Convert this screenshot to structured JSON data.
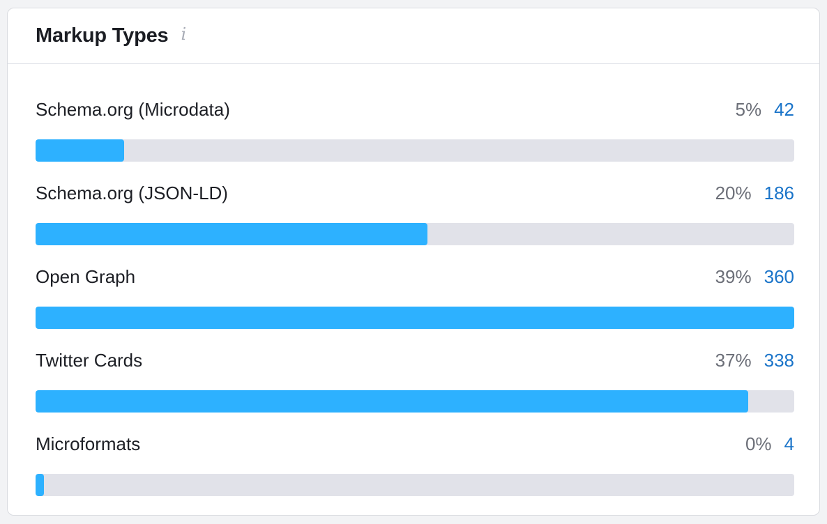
{
  "card": {
    "title": "Markup Types",
    "info_icon": "info-icon"
  },
  "colors": {
    "bar_fill": "#2db1ff",
    "bar_track": "#e1e2e9",
    "count_link": "#1a74c9"
  },
  "rows": [
    {
      "label": "Schema.org (Microdata)",
      "percent": "5%",
      "count": "42",
      "bar_fraction": 0.117
    },
    {
      "label": "Schema.org (JSON-LD)",
      "percent": "20%",
      "count": "186",
      "bar_fraction": 0.517
    },
    {
      "label": "Open Graph",
      "percent": "39%",
      "count": "360",
      "bar_fraction": 1.0
    },
    {
      "label": "Twitter Cards",
      "percent": "37%",
      "count": "338",
      "bar_fraction": 0.939
    },
    {
      "label": "Microformats",
      "percent": "0%",
      "count": "4",
      "bar_fraction": 0.011
    }
  ]
}
